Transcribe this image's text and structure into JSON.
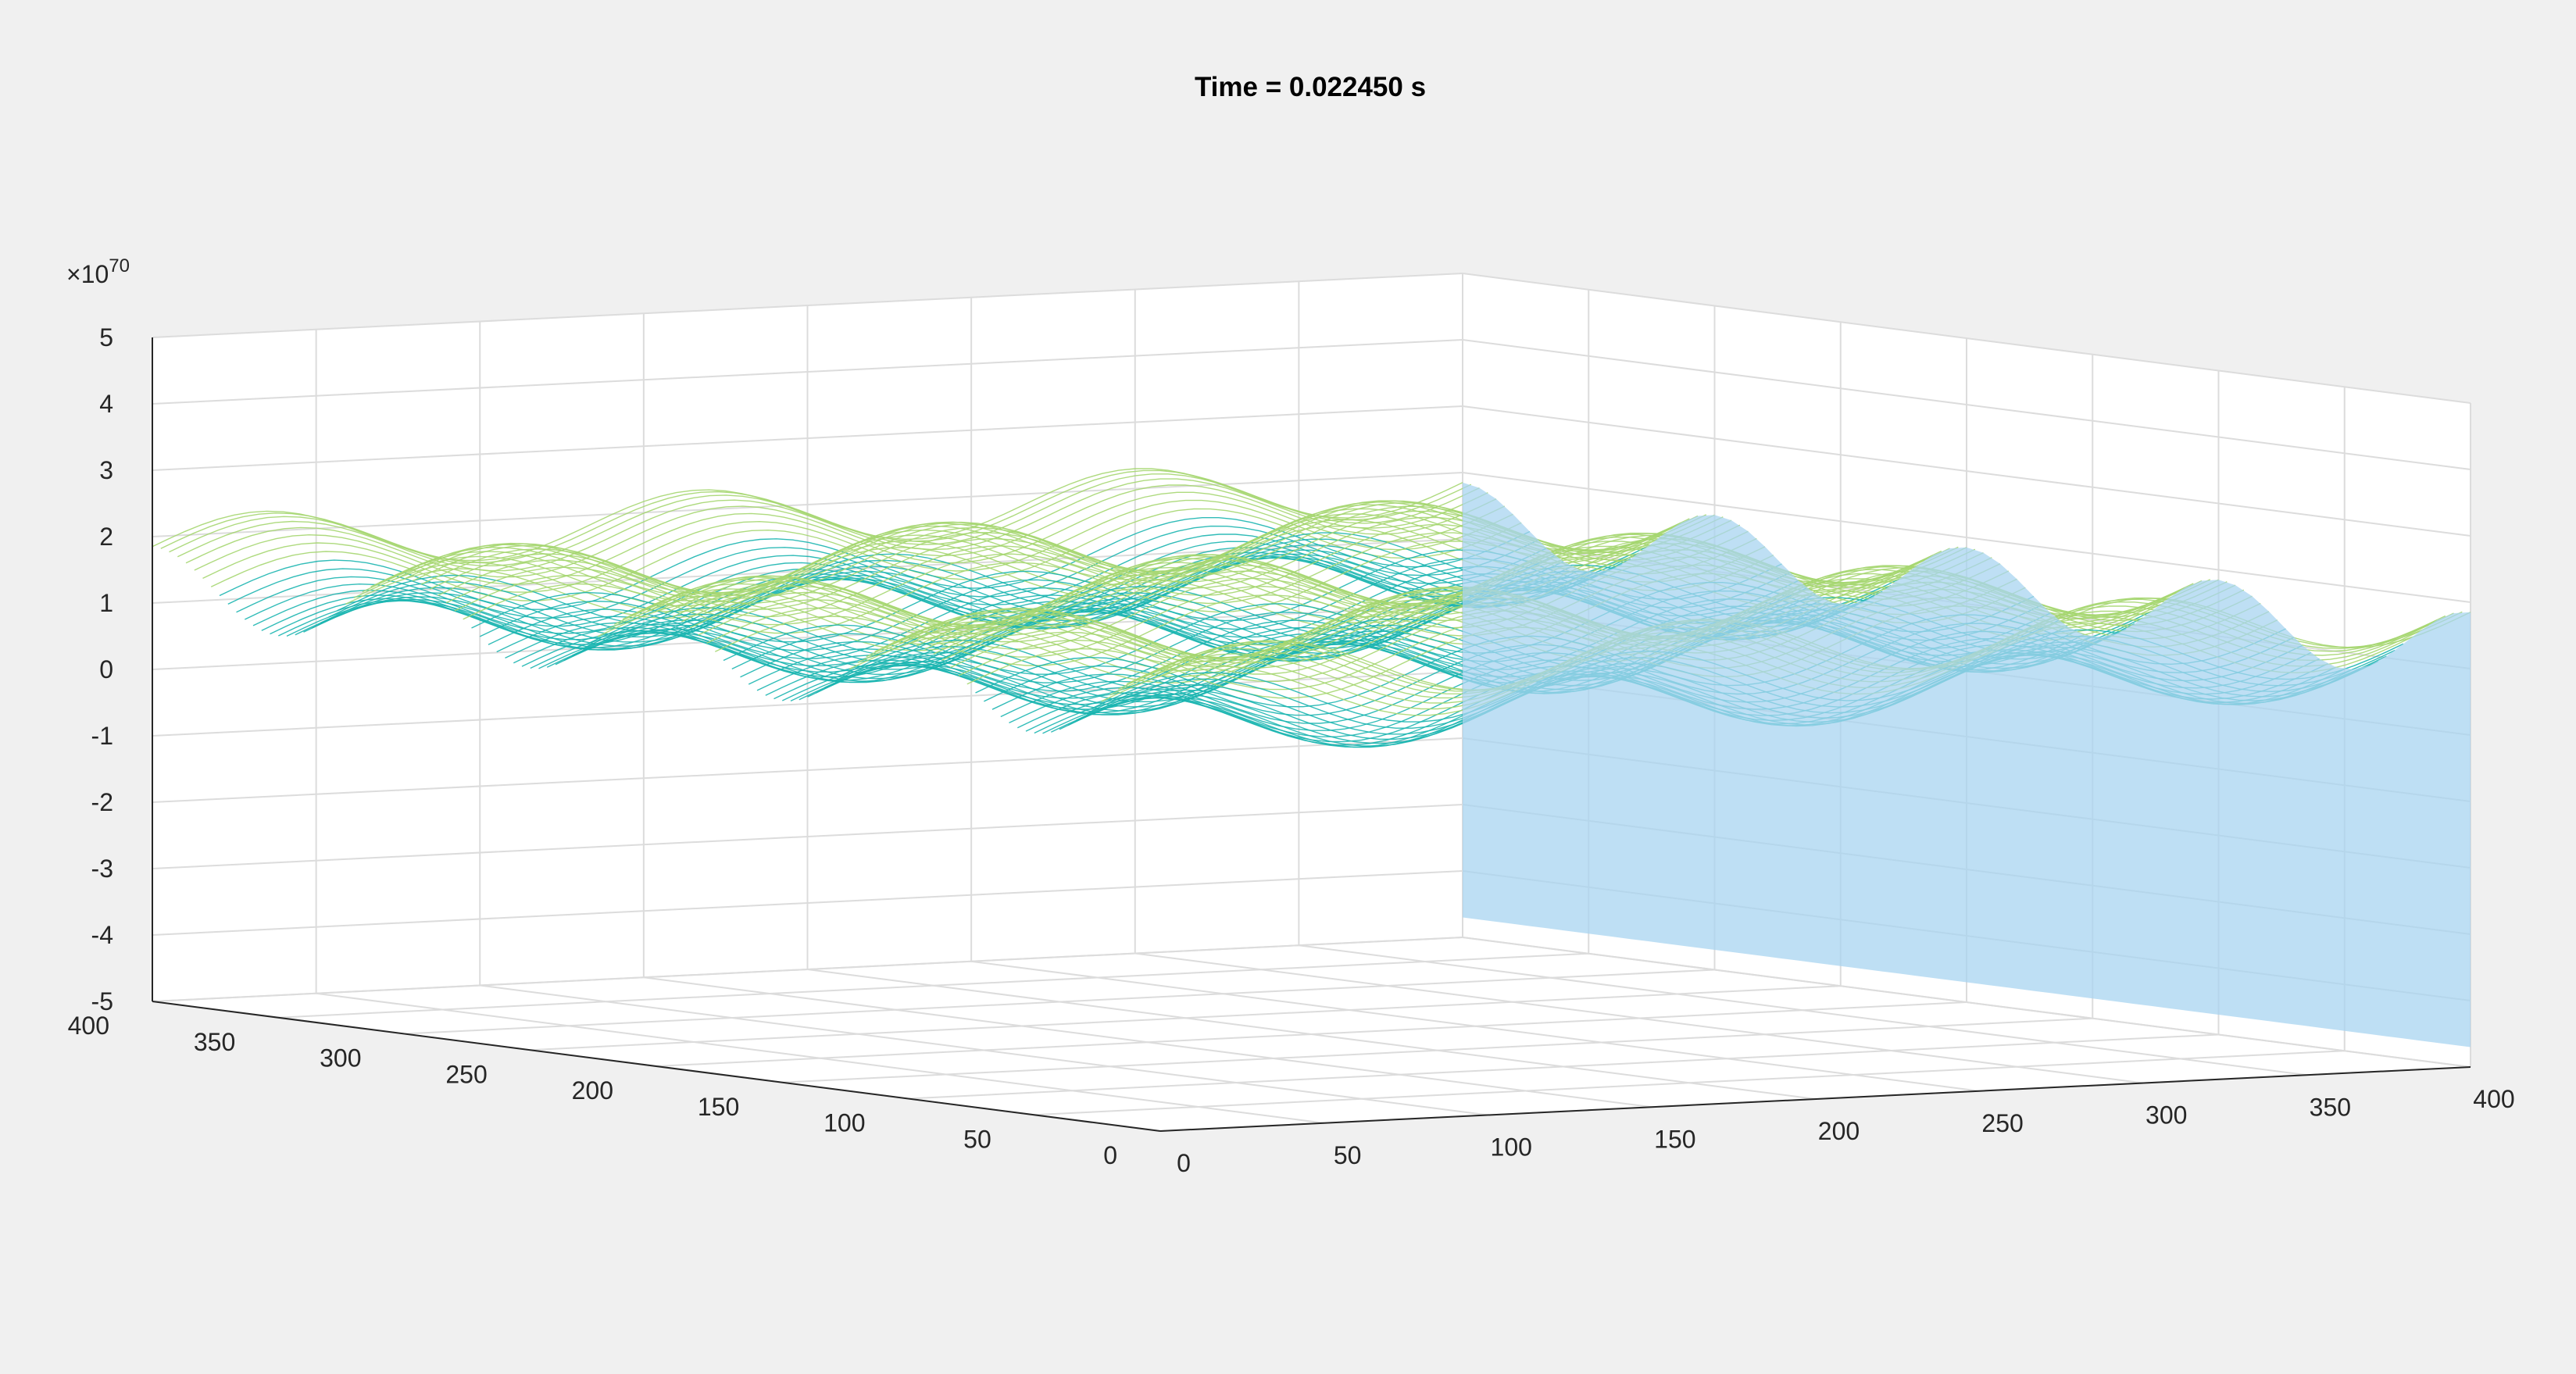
{
  "chart_data": {
    "type": "surface3d",
    "title": "Time = 0.022450 s",
    "xlabel": "",
    "ylabel": "",
    "zlabel": "",
    "x_ticks": [
      "0",
      "50",
      "100",
      "150",
      "200",
      "250",
      "300",
      "350",
      "400"
    ],
    "y_ticks": [
      "0",
      "50",
      "100",
      "150",
      "200",
      "250",
      "300",
      "350",
      "400"
    ],
    "z_ticks": [
      "-5",
      "-4",
      "-3",
      "-2",
      "-1",
      "0",
      "1",
      "2",
      "3",
      "4",
      "5"
    ],
    "z_multiplier": "×10",
    "z_exponent": "70",
    "xlim": [
      0,
      400
    ],
    "ylim": [
      0,
      400
    ],
    "zlim": [
      -5,
      5
    ],
    "grid": true,
    "colormap": [
      "#3c2bdb",
      "#1f8fe0",
      "#1bb5b0",
      "#a5d670",
      "#ffe01a"
    ],
    "surface_color": "#a8d4f0",
    "surface": {
      "description_free_params": true,
      "amplitude": 4.0,
      "ridges_y": [
        100,
        200,
        300
      ],
      "wave_x": [
        0,
        400
      ]
    }
  }
}
